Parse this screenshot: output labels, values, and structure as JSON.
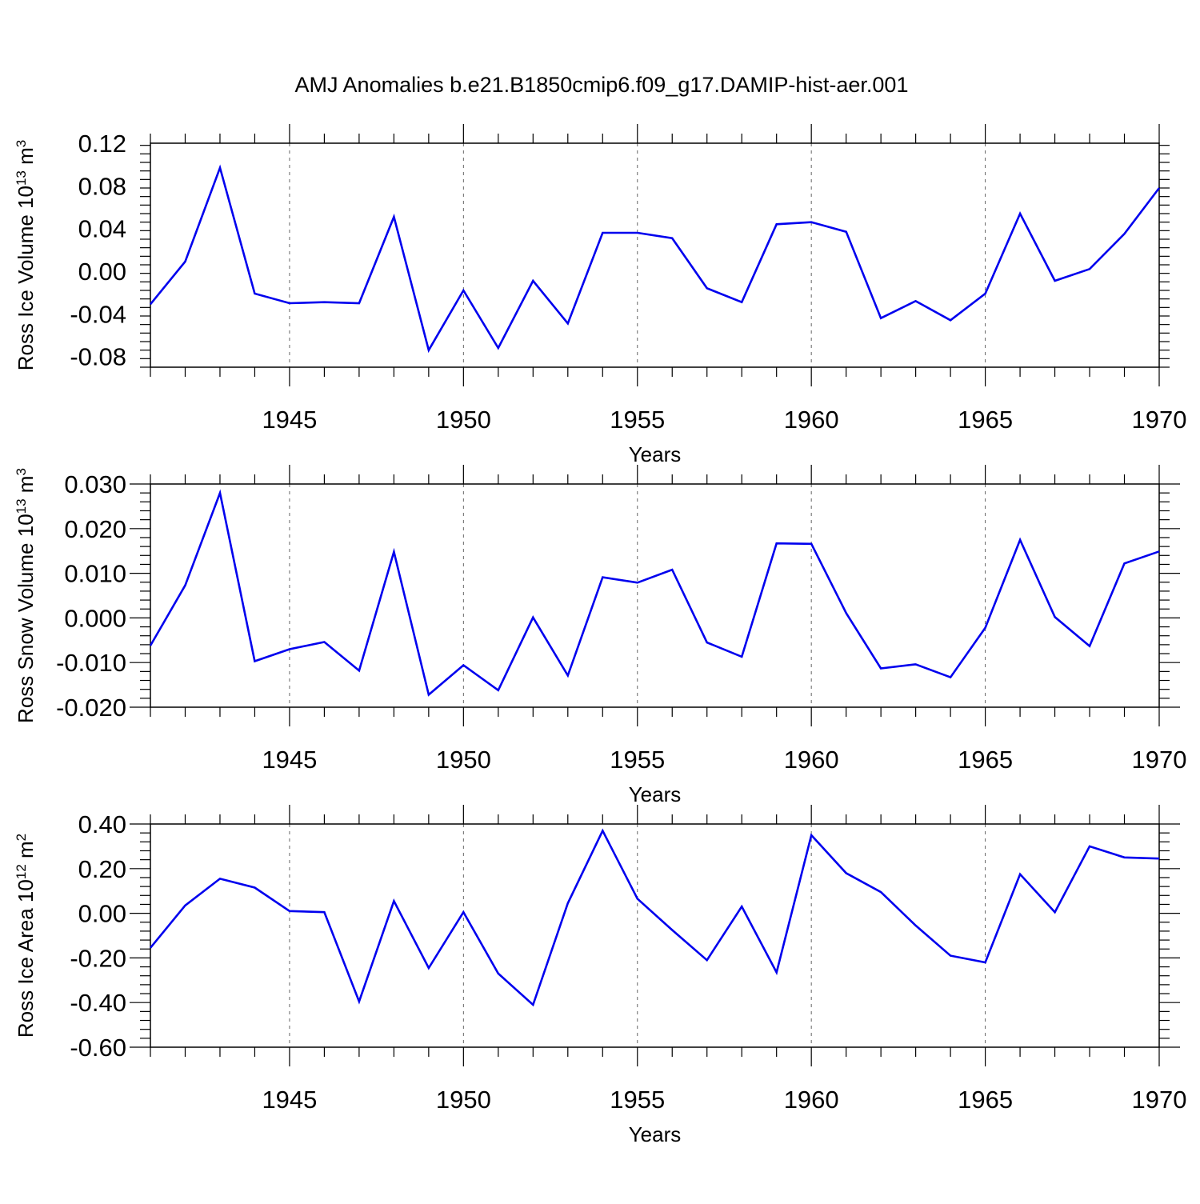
{
  "title": "AMJ Anomalies b.e21.B1850cmip6.f09_g17.DAMIP-hist-aer.001",
  "chart_data": [
    {
      "type": "line",
      "ylabel": {
        "base": "Ross Ice Volume 10",
        "exp": "13",
        "unit": " m",
        "unit_exp": "3"
      },
      "xlabel": "Years",
      "xlim": [
        1941,
        1970
      ],
      "ylim": [
        -0.09,
        0.12
      ],
      "yticks": [
        -0.08,
        -0.04,
        0.0,
        0.04,
        0.08,
        0.12
      ],
      "ytick_labels": [
        "-0.08",
        "-0.04",
        "0.00",
        "0.04",
        "0.08",
        "0.12"
      ],
      "xticks": [
        1945,
        1950,
        1955,
        1960,
        1965,
        1970
      ],
      "xtick_labels": [
        "1945",
        "1950",
        "1955",
        "1960",
        "1965",
        "1970"
      ],
      "x": [
        1941,
        1942,
        1943,
        1944,
        1945,
        1946,
        1947,
        1948,
        1949,
        1950,
        1951,
        1952,
        1953,
        1954,
        1955,
        1956,
        1957,
        1958,
        1959,
        1960,
        1961,
        1962,
        1963,
        1964,
        1965,
        1966,
        1967,
        1968,
        1969,
        1970
      ],
      "values": [
        -0.031,
        0.009,
        0.097,
        -0.021,
        -0.03,
        -0.029,
        -0.03,
        0.051,
        -0.074,
        -0.018,
        -0.072,
        -0.009,
        -0.049,
        0.036,
        0.036,
        0.031,
        -0.016,
        -0.029,
        0.044,
        0.046,
        0.037,
        -0.044,
        -0.028,
        -0.046,
        -0.021,
        0.054,
        -0.009,
        0.002,
        0.035,
        0.078
      ]
    },
    {
      "type": "line",
      "ylabel": {
        "base": "Ross Snow Volume 10",
        "exp": "13",
        "unit": " m",
        "unit_exp": "3"
      },
      "xlabel": "Years",
      "xlim": [
        1941,
        1970
      ],
      "ylim": [
        -0.02,
        0.03
      ],
      "yticks": [
        -0.02,
        -0.01,
        0.0,
        0.01,
        0.02,
        0.03
      ],
      "ytick_labels": [
        "-0.020",
        "-0.010",
        "0.000",
        "0.010",
        "0.020",
        "0.030"
      ],
      "xticks": [
        1945,
        1950,
        1955,
        1960,
        1965,
        1970
      ],
      "xtick_labels": [
        "1945",
        "1950",
        "1955",
        "1960",
        "1965",
        "1970"
      ],
      "x": [
        1941,
        1942,
        1943,
        1944,
        1945,
        1946,
        1947,
        1948,
        1949,
        1950,
        1951,
        1952,
        1953,
        1954,
        1955,
        1956,
        1957,
        1958,
        1959,
        1960,
        1961,
        1962,
        1963,
        1964,
        1965,
        1966,
        1967,
        1968,
        1969,
        1970
      ],
      "values": [
        -0.0062,
        0.0073,
        0.028,
        -0.0097,
        -0.007,
        -0.0054,
        -0.0118,
        0.0148,
        -0.0172,
        -0.0106,
        -0.0162,
        0.0001,
        -0.0129,
        0.0091,
        0.0079,
        0.0108,
        -0.0055,
        -0.0087,
        0.0167,
        0.0166,
        0.0011,
        -0.0113,
        -0.0104,
        -0.0133,
        -0.0022,
        0.0175,
        0.0002,
        -0.0063,
        0.0122,
        0.0149
      ]
    },
    {
      "type": "line",
      "ylabel": {
        "base": "Ross Ice Area 10",
        "exp": "12",
        "unit": " m",
        "unit_exp": "2"
      },
      "xlabel": "Years",
      "xlim": [
        1941,
        1970
      ],
      "ylim": [
        -0.6,
        0.4
      ],
      "yticks": [
        -0.6,
        -0.4,
        -0.2,
        0.0,
        0.2,
        0.4
      ],
      "ytick_labels": [
        "-0.60",
        "-0.40",
        "-0.20",
        "0.00",
        "0.20",
        "0.40"
      ],
      "xticks": [
        1945,
        1950,
        1955,
        1960,
        1965,
        1970
      ],
      "xtick_labels": [
        "1945",
        "1950",
        "1955",
        "1960",
        "1965",
        "1970"
      ],
      "x": [
        1941,
        1942,
        1943,
        1944,
        1945,
        1946,
        1947,
        1948,
        1949,
        1950,
        1951,
        1952,
        1953,
        1954,
        1955,
        1956,
        1957,
        1958,
        1959,
        1960,
        1961,
        1962,
        1963,
        1964,
        1965,
        1966,
        1967,
        1968,
        1969,
        1970
      ],
      "values": [
        -0.155,
        0.035,
        0.155,
        0.115,
        0.01,
        0.005,
        -0.395,
        0.055,
        -0.245,
        0.005,
        -0.27,
        -0.41,
        0.045,
        0.37,
        0.065,
        -0.075,
        -0.21,
        0.03,
        -0.265,
        0.35,
        0.18,
        0.095,
        -0.055,
        -0.19,
        -0.22,
        0.175,
        0.005,
        0.3,
        0.25,
        0.245
      ]
    }
  ]
}
